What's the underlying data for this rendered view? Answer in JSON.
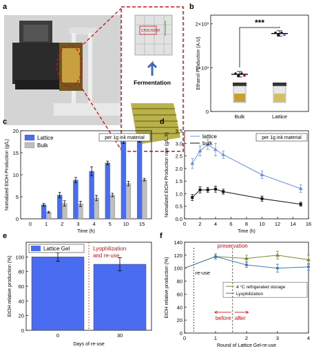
{
  "panels": {
    "a": {
      "label": "a",
      "annotation": "Fermentation",
      "inset_text": "CH3CH2OH"
    },
    "b": {
      "label": "b"
    },
    "c": {
      "label": "c"
    },
    "d": {
      "label": "d"
    },
    "e": {
      "label": "e"
    },
    "f": {
      "label": "f"
    }
  },
  "colors": {
    "lattice": "#4a6cf0",
    "bulk": "#bfbfbf",
    "lattice_line": "#6a8ee6",
    "red": "#d01010",
    "olive": "#7a8a2a",
    "blue": "#3a78b8"
  },
  "chart_data": [
    {
      "id": "b",
      "type": "scatter",
      "ylabel": "Ethanol Production (A.U)",
      "ytick_labels": [
        "0",
        "1×10³",
        "2×10³"
      ],
      "ylim": [
        0,
        2200
      ],
      "categories": [
        "Bulk",
        "Lattice"
      ],
      "values": [
        850,
        1780
      ],
      "significance": "***"
    },
    {
      "id": "c",
      "type": "bar",
      "ylabel": "Nomalized EtOH Production (g/L)",
      "xlabel": "Time (h)",
      "annotation": "per 1g ink material",
      "categories": [
        "0",
        "1",
        "2",
        "3",
        "4",
        "5",
        "10",
        "15"
      ],
      "ylim": [
        0,
        20
      ],
      "yticks": [
        0,
        5,
        10,
        15,
        20
      ],
      "series": [
        {
          "name": "Lattice",
          "values": [
            0,
            3.2,
            5.4,
            8.8,
            10.8,
            12.7,
            17.5,
            17.8
          ],
          "errors": [
            0,
            0.3,
            0.6,
            0.6,
            1.0,
            0.4,
            0.4,
            0.4
          ]
        },
        {
          "name": "Bulk",
          "values": [
            0,
            1.5,
            3.5,
            3.4,
            4.7,
            5.4,
            8.0,
            8.9
          ],
          "errors": [
            0,
            0.2,
            0.6,
            0.6,
            0.6,
            0.4,
            0.5,
            0.3
          ]
        }
      ]
    },
    {
      "id": "d",
      "type": "line",
      "ylabel": "Nomalized EtOH Production rate (g/L.h)",
      "xlabel": "Time (h)",
      "annotation": "per 1g ink material",
      "xlim": [
        0,
        16
      ],
      "xticks": [
        0,
        2,
        4,
        6,
        8,
        10,
        12,
        14,
        16
      ],
      "ylim": [
        0,
        3.5
      ],
      "yticks": [
        0,
        0.5,
        1.0,
        1.5,
        2.0,
        2.5,
        3.0,
        3.5
      ],
      "ytick_labels": [
        "0.0",
        "0.5",
        "1.0",
        "1.5",
        "2.0",
        "2.5",
        "3.0",
        "3.5"
      ],
      "series": [
        {
          "name": "lattice",
          "x": [
            1,
            2,
            3,
            4,
            5,
            10,
            15
          ],
          "y": [
            2.2,
            2.7,
            2.95,
            2.75,
            2.55,
            1.75,
            1.2
          ],
          "errors": [
            0.2,
            0.2,
            0.2,
            0.25,
            0.15,
            0.15,
            0.15
          ]
        },
        {
          "name": "bulk",
          "x": [
            1,
            2,
            3,
            4,
            5,
            10,
            15
          ],
          "y": [
            0.85,
            1.15,
            1.15,
            1.18,
            1.08,
            0.8,
            0.58
          ],
          "errors": [
            0.12,
            0.12,
            0.1,
            0.12,
            0.1,
            0.1,
            0.08
          ]
        }
      ]
    },
    {
      "id": "e",
      "type": "bar",
      "ylabel": "EtOH relative production (%)",
      "xlabel": "Days of re-use",
      "legend": "Lattice Gel",
      "annotation": "Lyophilization and re-use",
      "categories": [
        "0",
        "30"
      ],
      "values": [
        100,
        90
      ],
      "errors": [
        6,
        9
      ],
      "ylim": [
        0,
        120
      ],
      "yticks": [
        0,
        20,
        40,
        60,
        80,
        100
      ]
    },
    {
      "id": "f",
      "type": "line",
      "ylabel": "EtOH relative production (%)",
      "xlabel": "Round of Lattice Gel-re-use",
      "xlim": [
        0,
        4
      ],
      "xticks": [
        0,
        1,
        2,
        3,
        4
      ],
      "ylim": [
        0,
        140
      ],
      "yticks": [
        0,
        20,
        40,
        60,
        80,
        100,
        120,
        140
      ],
      "annotations": {
        "reuse": "re-use",
        "preservation": "preservation",
        "before": "before",
        "after": "after"
      },
      "series": [
        {
          "name": "4 °C refrigerated storage",
          "x": [
            0,
            1,
            2,
            3,
            4
          ],
          "y": [
            100,
            118,
            115,
            120,
            113
          ],
          "errors": [
            0,
            4,
            5,
            6,
            7
          ]
        },
        {
          "name": "Lyophilization",
          "x": [
            0,
            1,
            2,
            3,
            4
          ],
          "y": [
            100,
            118,
            105,
            100,
            102
          ],
          "errors": [
            0,
            4,
            4,
            6,
            5
          ]
        }
      ]
    }
  ]
}
